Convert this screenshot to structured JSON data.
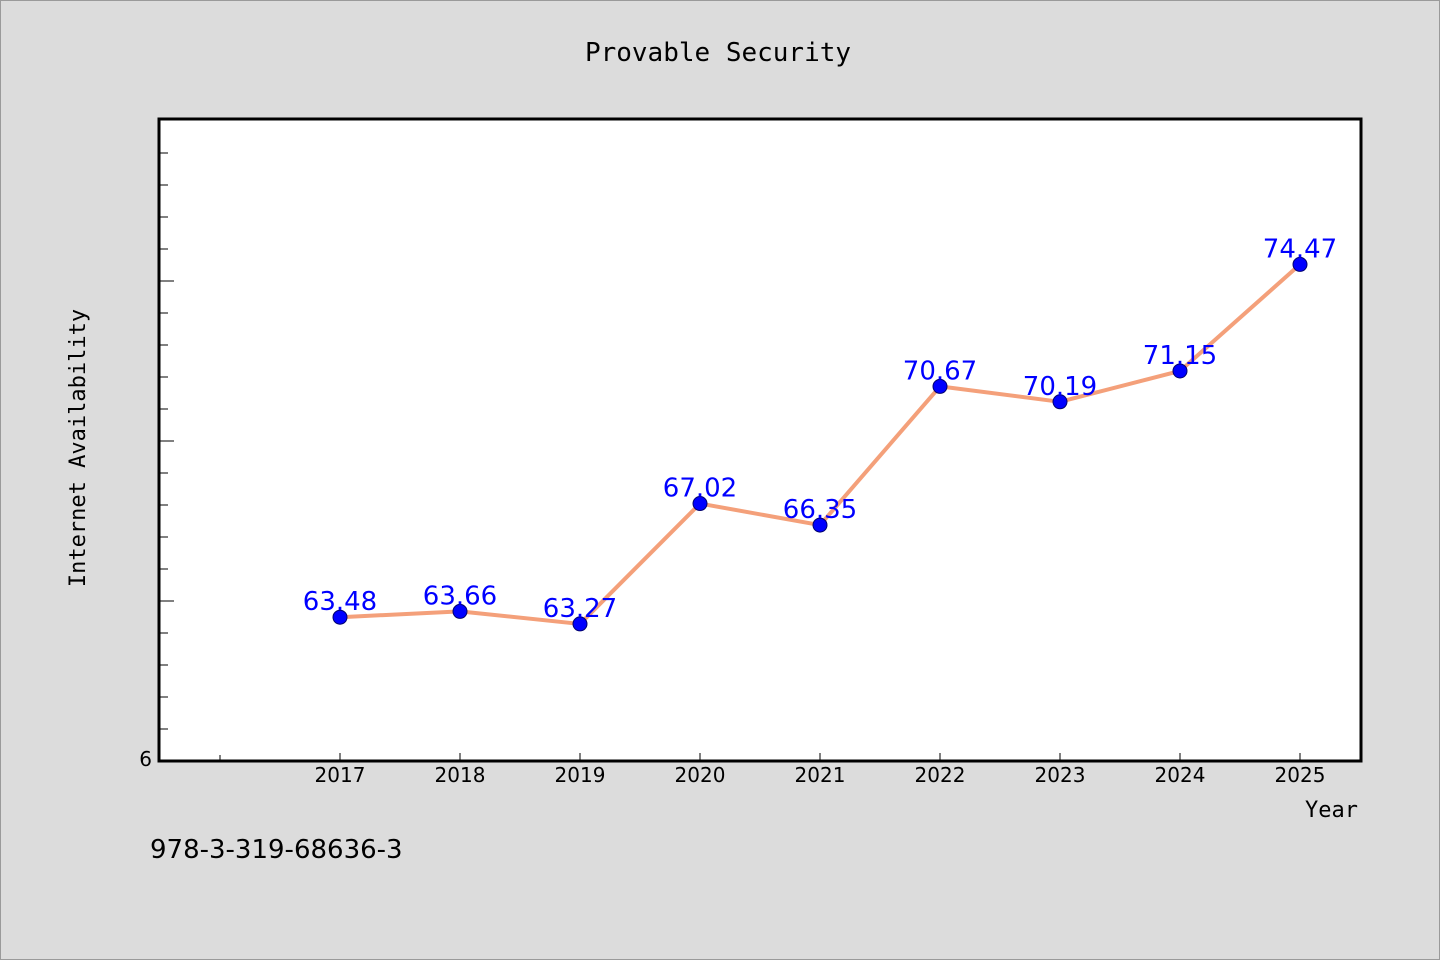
{
  "chart_data": {
    "type": "line",
    "title": "Provable Security",
    "xlabel": "Year",
    "ylabel": "Internet Availability",
    "categories": [
      "2017",
      "2018",
      "2019",
      "2020",
      "2021",
      "2022",
      "2023",
      "2024",
      "2025"
    ],
    "series": [
      {
        "values": [
          63.48,
          63.66,
          63.27,
          67.02,
          66.35,
          70.67,
          70.19,
          71.15,
          74.47
        ],
        "labels": [
          "63.48",
          "63.66",
          "63.27",
          "67.02",
          "66.35",
          "70.67",
          "70.19",
          "71.15",
          "74.47"
        ]
      }
    ],
    "ylim": [
      59,
      79
    ],
    "y_tick_labels": [
      "6"
    ],
    "grid": false,
    "colors": {
      "line": "#f4a07a",
      "marker": "#0000ff",
      "data_label": "#0000ff",
      "plot_background": "#ffffff",
      "page_background": "#dcdcdc"
    }
  },
  "footer": {
    "isbn": "978-3-319-68636-3"
  }
}
